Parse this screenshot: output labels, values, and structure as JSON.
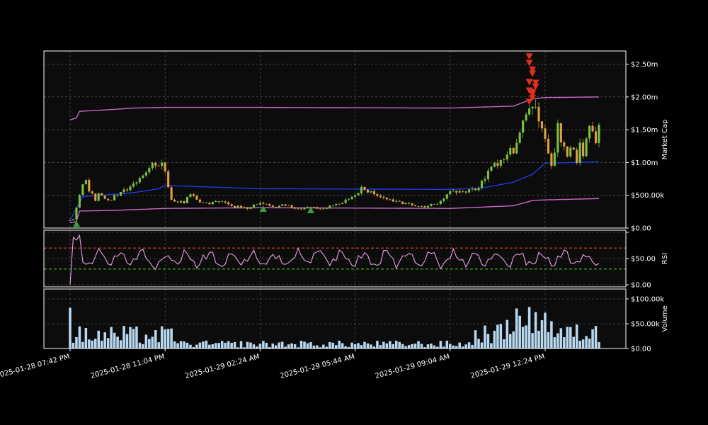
{
  "chart_data": [
    {
      "id": "market_cap",
      "type": "candlestick",
      "ylabel": "Market Cap",
      "ylim": [
        0,
        2700
      ],
      "yticks": [
        0,
        500,
        1000,
        1500,
        2000,
        2500
      ],
      "ytick_labels": [
        "$0.00",
        "$500.00k",
        "$1.00m",
        "$1.50m",
        "$2.00m",
        "$2.50m"
      ],
      "price_anchors": [
        [
          0,
          120
        ],
        [
          1,
          130
        ],
        [
          2,
          300
        ],
        [
          3,
          520
        ],
        [
          4,
          700
        ],
        [
          5,
          720
        ],
        [
          6,
          580
        ],
        [
          7,
          500
        ],
        [
          8,
          430
        ],
        [
          9,
          520
        ],
        [
          10,
          480
        ],
        [
          12,
          420
        ],
        [
          14,
          480
        ],
        [
          16,
          550
        ],
        [
          18,
          600
        ],
        [
          20,
          700
        ],
        [
          22,
          780
        ],
        [
          24,
          820
        ],
        [
          25,
          900
        ],
        [
          26,
          1050
        ],
        [
          27,
          950
        ],
        [
          28,
          900
        ],
        [
          29,
          1000
        ],
        [
          30,
          850
        ],
        [
          31,
          600
        ],
        [
          32,
          440
        ],
        [
          34,
          400
        ],
        [
          36,
          380
        ],
        [
          38,
          520
        ],
        [
          40,
          420
        ],
        [
          44,
          380
        ],
        [
          48,
          400
        ],
        [
          52,
          330
        ],
        [
          56,
          300
        ],
        [
          60,
          380
        ],
        [
          64,
          320
        ],
        [
          68,
          350
        ],
        [
          72,
          280
        ],
        [
          76,
          330
        ],
        [
          80,
          300
        ],
        [
          84,
          360
        ],
        [
          88,
          430
        ],
        [
          90,
          520
        ],
        [
          92,
          600
        ],
        [
          93,
          560
        ],
        [
          96,
          520
        ],
        [
          100,
          450
        ],
        [
          104,
          400
        ],
        [
          108,
          340
        ],
        [
          112,
          320
        ],
        [
          116,
          380
        ],
        [
          118,
          450
        ],
        [
          120,
          560
        ],
        [
          124,
          550
        ],
        [
          128,
          600
        ],
        [
          130,
          700
        ],
        [
          133,
          900
        ],
        [
          136,
          1050
        ],
        [
          140,
          1200
        ],
        [
          142,
          1450
        ],
        [
          144,
          1650
        ],
        [
          146,
          1900
        ],
        [
          147,
          1950
        ],
        [
          148,
          1700
        ],
        [
          149,
          1500
        ],
        [
          150,
          1300
        ],
        [
          151,
          1100
        ],
        [
          152,
          1000
        ],
        [
          153,
          1200
        ],
        [
          154,
          1600
        ],
        [
          155,
          1300
        ],
        [
          156,
          1200
        ],
        [
          157,
          1100
        ],
        [
          158,
          1300
        ],
        [
          159,
          1200
        ],
        [
          160,
          1050
        ],
        [
          161,
          1250
        ],
        [
          162,
          1150
        ],
        [
          163,
          1400
        ],
        [
          164,
          1650
        ],
        [
          165,
          1450
        ],
        [
          166,
          1300
        ],
        [
          167,
          1500
        ]
      ],
      "upper_band": [
        [
          0,
          1650
        ],
        [
          2,
          1680
        ],
        [
          3,
          1780
        ],
        [
          14,
          1810
        ],
        [
          20,
          1830
        ],
        [
          30,
          1840
        ],
        [
          60,
          1840
        ],
        [
          120,
          1830
        ],
        [
          140,
          1860
        ],
        [
          146,
          1970
        ],
        [
          150,
          1990
        ],
        [
          167,
          2000
        ]
      ],
      "lower_band": [
        [
          0,
          80
        ],
        [
          2,
          100
        ],
        [
          3,
          260
        ],
        [
          14,
          270
        ],
        [
          30,
          300
        ],
        [
          60,
          310
        ],
        [
          120,
          300
        ],
        [
          140,
          340
        ],
        [
          146,
          420
        ],
        [
          150,
          430
        ],
        [
          167,
          450
        ]
      ],
      "middle_band": [
        [
          0,
          120
        ],
        [
          2,
          300
        ],
        [
          4,
          480
        ],
        [
          15,
          520
        ],
        [
          20,
          540
        ],
        [
          28,
          600
        ],
        [
          30,
          650
        ],
        [
          60,
          600
        ],
        [
          120,
          590
        ],
        [
          130,
          610
        ],
        [
          140,
          700
        ],
        [
          146,
          820
        ],
        [
          150,
          990
        ],
        [
          167,
          1010
        ]
      ],
      "buy_markers": [
        [
          2,
          60
        ],
        [
          61,
          290
        ],
        [
          76,
          270
        ]
      ],
      "sell_markers": [
        [
          145,
          2620
        ],
        [
          145,
          2520
        ],
        [
          146,
          2420
        ],
        [
          146,
          2360
        ],
        [
          145,
          2230
        ],
        [
          145,
          2100
        ],
        [
          146,
          2050
        ],
        [
          146,
          1990
        ],
        [
          145,
          1930
        ],
        [
          147,
          2220
        ],
        [
          147,
          2160
        ],
        [
          146,
          2080
        ]
      ],
      "n_candles": 168,
      "colors": {
        "up": "#7ac143",
        "down": "#e0a040",
        "upper_band": "#cc66cc",
        "lower_band": "#cc66cc",
        "middle_band": "#1e3cdc",
        "buy": "#3aa03a",
        "sell": "#e03020"
      }
    },
    {
      "id": "rsi",
      "type": "line",
      "ylabel": "RSI",
      "ylim": [
        0,
        100
      ],
      "yticks": [
        0,
        50,
        100
      ],
      "ytick_labels": [
        "$0.00",
        "$50.00",
        ""
      ],
      "overbought": 70,
      "oversold": 30,
      "n_points": 168,
      "colors": {
        "line": "#e8a0e8",
        "overbought": "#e04020",
        "oversold": "#40c020"
      }
    },
    {
      "id": "volume",
      "type": "bar",
      "ylabel": "Volume",
      "ylim": [
        0,
        120
      ],
      "yticks": [
        0,
        50,
        100
      ],
      "ytick_labels": [
        "$0.00",
        "$50.00k",
        "$100.00k"
      ],
      "n_bars": 168,
      "colors": {
        "bar": "#b8d8f0"
      }
    }
  ],
  "x_axis": {
    "ticks": [
      {
        "index": 0,
        "label": "2025-01-28 07:42 PM"
      },
      {
        "index": 30,
        "label": "2025-01-28 11:04 PM"
      },
      {
        "index": 60,
        "label": "2025-01-29 02:24 AM"
      },
      {
        "index": 90,
        "label": "2025-01-29 05:44 AM"
      },
      {
        "index": 120,
        "label": "2025-01-29 09:04 AM"
      },
      {
        "index": 150,
        "label": "2025-01-29 12:24 PM"
      }
    ]
  }
}
